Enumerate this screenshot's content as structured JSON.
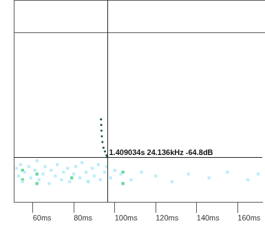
{
  "chart_data": {
    "type": "scatter",
    "series": [
      {
        "color": "#bdedf7",
        "marker": "square",
        "values": [
          [
            52,
            18
          ],
          [
            53,
            14
          ],
          [
            54,
            20
          ],
          [
            55,
            11
          ],
          [
            56,
            16
          ],
          [
            58,
            19
          ],
          [
            59,
            13
          ],
          [
            61,
            17
          ],
          [
            62,
            22
          ],
          [
            63,
            12
          ],
          [
            65,
            15
          ],
          [
            66,
            19
          ],
          [
            68,
            10
          ],
          [
            69,
            17
          ],
          [
            71,
            14
          ],
          [
            72,
            20
          ],
          [
            74,
            12
          ],
          [
            75,
            16
          ],
          [
            77,
            18
          ],
          [
            78,
            11
          ],
          [
            80,
            15
          ],
          [
            81,
            19
          ],
          [
            83,
            13
          ],
          [
            84,
            21
          ],
          [
            86,
            16
          ],
          [
            87,
            11
          ],
          [
            89,
            18
          ],
          [
            90,
            14
          ],
          [
            92,
            20
          ],
          [
            93,
            12
          ],
          [
            95,
            16
          ],
          [
            96,
            19
          ],
          [
            98,
            13
          ],
          [
            100,
            17
          ],
          [
            103,
            15
          ],
          [
            108,
            12
          ],
          [
            113,
            16
          ],
          [
            120,
            14
          ],
          [
            128,
            11
          ],
          [
            136,
            15
          ],
          [
            146,
            13
          ],
          [
            155,
            16
          ],
          [
            165,
            12
          ],
          [
            170,
            15
          ]
        ]
      },
      {
        "color": "#5fd89a",
        "marker": "square",
        "values": [
          [
            55,
            12
          ],
          [
            55,
            17
          ],
          [
            62,
            10
          ],
          [
            62,
            15
          ],
          [
            79,
            13
          ],
          [
            87,
            11
          ],
          [
            104,
            10
          ],
          [
            104,
            16
          ]
        ]
      },
      {
        "color": "#1e5e3a",
        "marker": "circle",
        "values": [
          [
            93.3,
            44
          ],
          [
            93.4,
            41
          ],
          [
            93.5,
            38
          ],
          [
            93.7,
            35
          ],
          [
            94,
            32
          ],
          [
            94.5,
            29
          ],
          [
            95.2,
            27
          ],
          [
            96,
            25
          ],
          [
            96.3,
            24.136
          ]
        ]
      }
    ],
    "xlim": [
      50.7,
      172
    ],
    "xticks": [
      {
        "value": 60,
        "label": "60ms"
      },
      {
        "value": 80,
        "label": "80ms"
      },
      {
        "value": 100,
        "label": "100ms"
      },
      {
        "value": 120,
        "label": "120ms"
      },
      {
        "value": 140,
        "label": "140ms"
      },
      {
        "value": 160,
        "label": "160ms"
      }
    ],
    "ylim": [
      0,
      90
    ],
    "tick_labels": "x",
    "grid": false,
    "annotation": {
      "text": "1.409034s 24.136kHz -64.8dB",
      "x": 96.3,
      "y": 24.136
    }
  }
}
